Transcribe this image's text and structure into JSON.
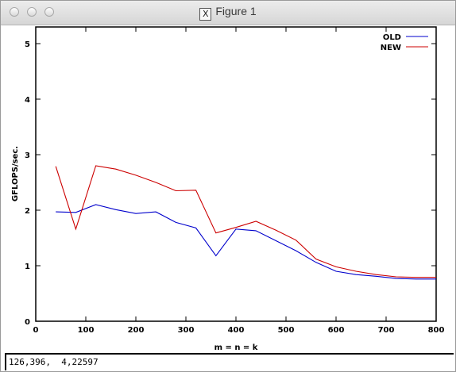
{
  "window": {
    "title": "Figure 1",
    "title_icon": "x11-icon"
  },
  "status": {
    "coords": "126,396,  4,22597"
  },
  "chart_data": {
    "type": "line",
    "title": "",
    "xlabel": "m = n = k",
    "ylabel": "GFLOPS/sec.",
    "xlim": [
      0,
      800
    ],
    "ylim": [
      0,
      5.3
    ],
    "xticks": [
      0,
      100,
      200,
      300,
      400,
      500,
      600,
      700,
      800
    ],
    "yticks": [
      0,
      1,
      2,
      3,
      4,
      5
    ],
    "grid": false,
    "legend": "top-right",
    "x": [
      40,
      80,
      120,
      160,
      200,
      240,
      280,
      320,
      360,
      400,
      440,
      480,
      520,
      560,
      600,
      640,
      680,
      720,
      760,
      800
    ],
    "series": [
      {
        "name": "OLD",
        "color": "#0000cc",
        "values": [
          1.97,
          1.96,
          2.1,
          2.01,
          1.94,
          1.97,
          1.78,
          1.68,
          1.18,
          1.66,
          1.63,
          1.45,
          1.27,
          1.06,
          0.9,
          0.84,
          0.81,
          0.77,
          0.76,
          0.76
        ]
      },
      {
        "name": "NEW",
        "color": "#cc0000",
        "values": [
          2.79,
          1.66,
          2.8,
          2.74,
          2.63,
          2.5,
          2.35,
          2.36,
          1.59,
          1.69,
          1.8,
          1.64,
          1.46,
          1.12,
          0.98,
          0.9,
          0.84,
          0.8,
          0.79,
          0.79
        ]
      }
    ]
  }
}
